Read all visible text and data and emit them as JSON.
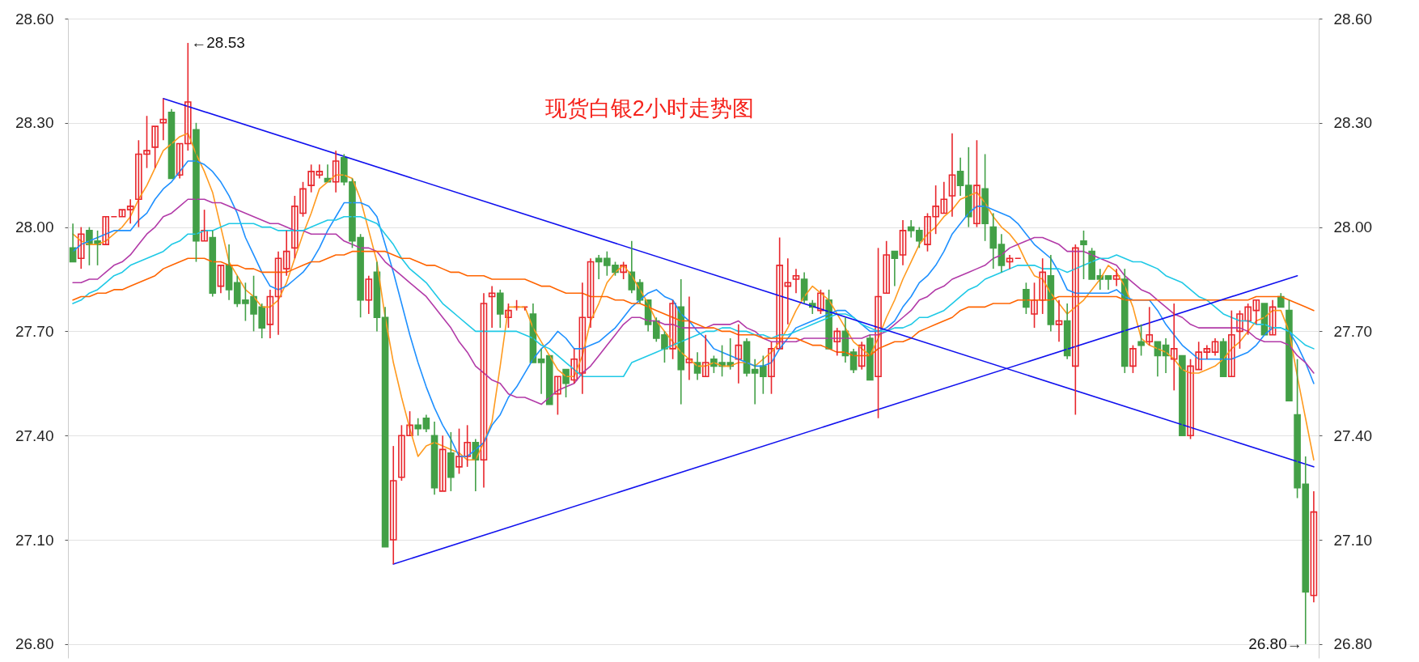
{
  "chart_data": {
    "type": "candlestick",
    "title": "现货白银2小时走势图",
    "categories": [
      null,
      null,
      null,
      null,
      null,
      null,
      null,
      null,
      null,
      null,
      null,
      null,
      null,
      null,
      null,
      null,
      null,
      null,
      null,
      null,
      null,
      null,
      null,
      null,
      null,
      null,
      null,
      null,
      null,
      null,
      null,
      null,
      null,
      null,
      null,
      null,
      null,
      null,
      null,
      null,
      null,
      null,
      null,
      null,
      null,
      null,
      null,
      null,
      null,
      null,
      null,
      null,
      null,
      null,
      null,
      null,
      null,
      null,
      null,
      null,
      null,
      null,
      null,
      null,
      null,
      null,
      null,
      null,
      null,
      null,
      null,
      null,
      null,
      null,
      null,
      null,
      null,
      null,
      null,
      null,
      null,
      null,
      null,
      null,
      null,
      null,
      null,
      null,
      null,
      null,
      null,
      null,
      null,
      null,
      null,
      null,
      null,
      null,
      null,
      null,
      null,
      null,
      null,
      null,
      null,
      null,
      null,
      null,
      null,
      null,
      null,
      null,
      null,
      null,
      null,
      null,
      null,
      null,
      null,
      null,
      null,
      null,
      null,
      null,
      null,
      null,
      null,
      null,
      null,
      null,
      null,
      null,
      null,
      null,
      null,
      null,
      null,
      null,
      null,
      null,
      null,
      null,
      null,
      null,
      null,
      null,
      null,
      null,
      null,
      null,
      null,
      null
    ],
    "ohlc": [
      [
        27.94,
        28.01,
        27.9,
        27.9
      ],
      [
        27.91,
        28.0,
        27.88,
        27.98
      ],
      [
        27.99,
        28.0,
        27.89,
        27.95
      ],
      [
        27.96,
        27.99,
        27.89,
        27.95
      ],
      [
        27.95,
        28.03,
        27.95,
        28.03
      ],
      [
        28.03,
        28.03,
        28.03,
        28.03
      ],
      [
        28.03,
        28.05,
        28.03,
        28.05
      ],
      [
        28.05,
        28.08,
        28.01,
        28.06
      ],
      [
        28.08,
        28.25,
        28.0,
        28.21
      ],
      [
        28.21,
        28.32,
        28.17,
        28.22
      ],
      [
        28.23,
        28.29,
        28.17,
        28.29
      ],
      [
        28.3,
        28.37,
        28.25,
        28.31
      ],
      [
        28.33,
        28.34,
        28.14,
        28.14
      ],
      [
        28.15,
        28.24,
        28.14,
        28.24
      ],
      [
        28.24,
        28.53,
        28.22,
        28.36
      ],
      [
        28.28,
        28.3,
        27.9,
        27.96
      ],
      [
        27.96,
        28.05,
        27.96,
        27.99
      ],
      [
        27.97,
        27.99,
        27.8,
        27.81
      ],
      [
        27.83,
        27.89,
        27.81,
        27.89
      ],
      [
        27.89,
        27.95,
        27.79,
        27.82
      ],
      [
        27.84,
        27.86,
        27.77,
        27.78
      ],
      [
        27.79,
        27.84,
        27.73,
        27.78
      ],
      [
        27.8,
        27.86,
        27.7,
        27.75
      ],
      [
        27.77,
        27.78,
        27.68,
        27.71
      ],
      [
        27.72,
        27.82,
        27.68,
        27.8
      ],
      [
        27.8,
        27.93,
        27.69,
        27.91
      ],
      [
        27.88,
        27.99,
        27.86,
        27.93
      ],
      [
        27.94,
        28.09,
        27.91,
        28.06
      ],
      [
        28.04,
        28.13,
        28.03,
        28.11
      ],
      [
        28.12,
        28.18,
        28.1,
        28.16
      ],
      [
        28.15,
        28.18,
        28.14,
        28.16
      ],
      [
        28.14,
        28.18,
        28.13,
        28.13
      ],
      [
        28.13,
        28.22,
        28.1,
        28.19
      ],
      [
        28.2,
        28.21,
        28.12,
        28.13
      ],
      [
        28.13,
        28.14,
        27.94,
        27.96
      ],
      [
        27.97,
        27.98,
        27.74,
        27.79
      ],
      [
        27.79,
        27.86,
        27.75,
        27.85
      ],
      [
        27.87,
        27.9,
        27.7,
        27.74
      ],
      [
        27.74,
        27.77,
        27.08,
        27.08
      ],
      [
        27.1,
        27.37,
        27.03,
        27.27
      ],
      [
        27.28,
        27.43,
        27.27,
        27.4
      ],
      [
        27.4,
        27.47,
        27.4,
        27.43
      ],
      [
        27.43,
        27.45,
        27.4,
        27.42
      ],
      [
        27.45,
        27.46,
        27.41,
        27.42
      ],
      [
        27.4,
        27.44,
        27.23,
        27.25
      ],
      [
        27.24,
        27.4,
        27.24,
        27.36
      ],
      [
        27.35,
        27.41,
        27.24,
        27.28
      ],
      [
        27.31,
        27.42,
        27.29,
        27.34
      ],
      [
        27.34,
        27.43,
        27.31,
        27.38
      ],
      [
        27.38,
        27.39,
        27.24,
        27.33
      ],
      [
        27.33,
        27.81,
        27.25,
        27.78
      ],
      [
        27.8,
        27.83,
        27.71,
        27.81
      ],
      [
        27.81,
        27.82,
        27.71,
        27.75
      ],
      [
        27.74,
        27.78,
        27.71,
        27.76
      ],
      [
        27.77,
        27.79,
        27.76,
        27.77
      ],
      [
        27.77,
        27.77,
        27.76,
        27.77
      ],
      [
        27.75,
        27.78,
        27.61,
        27.61
      ],
      [
        27.62,
        27.65,
        27.52,
        27.61
      ],
      [
        27.63,
        27.63,
        27.49,
        27.49
      ],
      [
        27.52,
        27.57,
        27.46,
        27.57
      ],
      [
        27.59,
        27.59,
        27.51,
        27.55
      ],
      [
        27.56,
        27.65,
        27.55,
        27.62
      ],
      [
        27.58,
        27.84,
        27.52,
        27.74
      ],
      [
        27.74,
        27.91,
        27.71,
        27.9
      ],
      [
        27.91,
        27.92,
        27.85,
        27.9
      ],
      [
        27.91,
        27.93,
        27.86,
        27.89
      ],
      [
        27.89,
        27.9,
        27.86,
        27.87
      ],
      [
        27.87,
        27.9,
        27.85,
        27.89
      ],
      [
        27.87,
        27.96,
        27.81,
        27.82
      ],
      [
        27.84,
        27.85,
        27.78,
        27.79
      ],
      [
        27.79,
        27.79,
        27.7,
        27.72
      ],
      [
        27.73,
        27.74,
        27.67,
        27.68
      ],
      [
        27.69,
        27.7,
        27.61,
        27.65
      ],
      [
        27.65,
        27.79,
        27.62,
        27.78
      ],
      [
        27.77,
        27.85,
        27.49,
        27.59
      ],
      [
        27.61,
        27.8,
        27.56,
        27.62
      ],
      [
        27.61,
        27.64,
        27.56,
        27.58
      ],
      [
        27.57,
        27.69,
        27.57,
        27.61
      ],
      [
        27.62,
        27.63,
        27.58,
        27.6
      ],
      [
        27.61,
        27.66,
        27.57,
        27.6
      ],
      [
        27.61,
        27.68,
        27.59,
        27.6
      ],
      [
        27.62,
        27.72,
        27.55,
        27.66
      ],
      [
        27.67,
        27.68,
        27.57,
        27.58
      ],
      [
        27.59,
        27.62,
        27.49,
        27.58
      ],
      [
        27.6,
        27.63,
        27.52,
        27.57
      ],
      [
        27.57,
        27.67,
        27.52,
        27.65
      ],
      [
        27.65,
        27.97,
        27.65,
        27.89
      ],
      [
        27.83,
        27.91,
        27.72,
        27.84
      ],
      [
        27.85,
        27.88,
        27.81,
        27.86
      ],
      [
        27.85,
        27.87,
        27.78,
        27.79
      ],
      [
        27.78,
        27.79,
        27.75,
        27.77
      ],
      [
        27.76,
        27.82,
        27.75,
        27.81
      ],
      [
        27.79,
        27.82,
        27.65,
        27.65
      ],
      [
        27.67,
        27.71,
        27.63,
        27.7
      ],
      [
        27.7,
        27.74,
        27.61,
        27.63
      ],
      [
        27.64,
        27.65,
        27.58,
        27.59
      ],
      [
        27.6,
        27.67,
        27.59,
        27.66
      ],
      [
        27.68,
        27.69,
        27.56,
        27.56
      ],
      [
        27.57,
        27.94,
        27.45,
        27.8
      ],
      [
        27.81,
        27.96,
        27.81,
        27.92
      ],
      [
        27.93,
        27.93,
        27.83,
        27.91
      ],
      [
        27.92,
        28.02,
        27.89,
        27.99
      ],
      [
        28.0,
        28.02,
        27.97,
        27.99
      ],
      [
        27.99,
        28.0,
        27.94,
        27.96
      ],
      [
        27.95,
        28.04,
        27.93,
        28.03
      ],
      [
        28.03,
        28.12,
        27.98,
        28.06
      ],
      [
        28.04,
        28.13,
        28.04,
        28.08
      ],
      [
        28.09,
        28.27,
        28.03,
        28.15
      ],
      [
        28.16,
        28.2,
        28.09,
        28.12
      ],
      [
        28.12,
        28.23,
        28.0,
        28.03
      ],
      [
        28.01,
        28.25,
        28.0,
        28.12
      ],
      [
        28.11,
        28.21,
        27.96,
        28.01
      ],
      [
        28.0,
        28.04,
        27.88,
        27.94
      ],
      [
        27.95,
        27.98,
        27.87,
        27.89
      ],
      [
        27.9,
        27.92,
        27.88,
        27.91
      ],
      [
        27.91,
        27.91,
        27.91,
        27.91
      ],
      [
        27.82,
        27.84,
        27.75,
        27.77
      ],
      [
        27.75,
        27.84,
        27.71,
        27.79
      ],
      [
        27.79,
        27.91,
        27.75,
        27.87
      ],
      [
        27.86,
        27.92,
        27.7,
        27.72
      ],
      [
        27.72,
        27.79,
        27.67,
        27.73
      ],
      [
        27.73,
        27.78,
        27.62,
        27.63
      ],
      [
        27.6,
        27.95,
        27.46,
        27.94
      ],
      [
        27.96,
        27.99,
        27.85,
        27.95
      ],
      [
        27.93,
        27.94,
        27.85,
        27.85
      ],
      [
        27.86,
        27.88,
        27.82,
        27.85
      ],
      [
        27.86,
        27.86,
        27.82,
        27.85
      ],
      [
        27.85,
        27.88,
        27.83,
        27.86
      ],
      [
        27.85,
        27.88,
        27.58,
        27.6
      ],
      [
        27.6,
        27.66,
        27.58,
        27.65
      ],
      [
        27.67,
        27.72,
        27.63,
        27.66
      ],
      [
        27.67,
        27.77,
        27.66,
        27.69
      ],
      [
        27.67,
        27.67,
        27.57,
        27.63
      ],
      [
        27.66,
        27.68,
        27.58,
        27.63
      ],
      [
        27.62,
        27.78,
        27.53,
        27.65
      ],
      [
        27.63,
        27.63,
        27.4,
        27.4
      ],
      [
        27.4,
        27.62,
        27.39,
        27.6
      ],
      [
        27.59,
        27.67,
        27.59,
        27.64
      ],
      [
        27.64,
        27.66,
        27.62,
        27.65
      ],
      [
        27.64,
        27.68,
        27.63,
        27.67
      ],
      [
        27.67,
        27.68,
        27.57,
        27.57
      ],
      [
        27.57,
        27.76,
        27.57,
        27.69
      ],
      [
        27.7,
        27.76,
        27.65,
        27.75
      ],
      [
        27.73,
        27.78,
        27.69,
        27.77
      ],
      [
        27.76,
        27.79,
        27.72,
        27.79
      ],
      [
        27.78,
        27.78,
        27.69,
        27.69
      ],
      [
        27.69,
        27.79,
        27.69,
        27.77
      ],
      [
        27.8,
        27.81,
        27.77,
        27.77
      ],
      [
        27.76,
        27.79,
        27.5,
        27.5
      ],
      [
        27.46,
        27.62,
        27.22,
        27.25
      ],
      [
        27.26,
        27.34,
        26.8,
        26.95
      ],
      [
        26.94,
        27.24,
        26.92,
        27.18
      ]
    ],
    "colors": [
      "#43a047",
      "#e8262c",
      "#43a047",
      "#43a047",
      "#e8262c",
      "#e8262c",
      "#e8262c",
      "#e8262c",
      "#e8262c",
      "#e8262c",
      "#e8262c",
      "#e8262c",
      "#43a047",
      "#e8262c",
      "#e8262c",
      "#43a047",
      "#e8262c",
      "#43a047",
      "#e8262c",
      "#43a047",
      "#43a047",
      "#43a047",
      "#43a047",
      "#43a047",
      "#e8262c",
      "#e8262c",
      "#e8262c",
      "#e8262c",
      "#e8262c",
      "#e8262c",
      "#e8262c",
      "#43a047",
      "#e8262c",
      "#43a047",
      "#43a047",
      "#43a047",
      "#e8262c",
      "#43a047",
      "#43a047",
      "#e8262c",
      "#e8262c",
      "#e8262c",
      "#43a047",
      "#43a047",
      "#43a047",
      "#e8262c",
      "#43a047",
      "#e8262c",
      "#e8262c",
      "#43a047",
      "#e8262c",
      "#e8262c",
      "#43a047",
      "#e8262c",
      "#e8262c",
      "#e8262c",
      "#43a047",
      "#43a047",
      "#43a047",
      "#e8262c",
      "#43a047",
      "#e8262c",
      "#e8262c",
      "#e8262c",
      "#43a047",
      "#43a047",
      "#43a047",
      "#e8262c",
      "#43a047",
      "#43a047",
      "#43a047",
      "#43a047",
      "#43a047",
      "#e8262c",
      "#43a047",
      "#e8262c",
      "#43a047",
      "#e8262c",
      "#43a047",
      "#43a047",
      "#43a047",
      "#e8262c",
      "#43a047",
      "#43a047",
      "#43a047",
      "#e8262c",
      "#e8262c",
      "#e8262c",
      "#e8262c",
      "#43a047",
      "#43a047",
      "#e8262c",
      "#43a047",
      "#e8262c",
      "#43a047",
      "#43a047",
      "#e8262c",
      "#43a047",
      "#e8262c",
      "#e8262c",
      "#43a047",
      "#e8262c",
      "#43a047",
      "#43a047",
      "#e8262c",
      "#e8262c",
      "#e8262c",
      "#e8262c",
      "#43a047",
      "#43a047",
      "#e8262c",
      "#43a047",
      "#43a047",
      "#43a047",
      "#e8262c",
      "#e8262c",
      "#43a047",
      "#e8262c",
      "#e8262c",
      "#43a047",
      "#e8262c",
      "#43a047",
      "#e8262c",
      "#43a047",
      "#43a047",
      "#43a047",
      "#43a047",
      "#e8262c",
      "#43a047",
      "#e8262c",
      "#43a047",
      "#e8262c",
      "#43a047",
      "#43a047",
      "#e8262c",
      "#43a047",
      "#e8262c",
      "#e8262c",
      "#e8262c",
      "#e8262c",
      "#43a047",
      "#e8262c",
      "#e8262c",
      "#e8262c",
      "#e8262c",
      "#43a047",
      "#e8262c",
      "#43a047",
      "#43a047",
      "#43a047",
      "#43a047",
      "#e8262c"
    ],
    "series": [
      {
        "type": "line",
        "color": "#ff9a1f",
        "values": [
          27.98,
          27.96,
          27.95,
          27.95,
          27.96,
          27.98,
          28.0,
          28.03,
          28.08,
          28.12,
          28.17,
          28.22,
          28.24,
          28.26,
          28.27,
          28.21,
          28.16,
          28.1,
          28.0,
          27.9,
          27.86,
          27.82,
          27.8,
          27.77,
          27.77,
          27.79,
          27.84,
          27.91,
          27.98,
          28.04,
          28.11,
          28.13,
          28.15,
          28.15,
          28.14,
          28.08,
          27.99,
          27.9,
          27.74,
          27.61,
          27.51,
          27.42,
          27.34,
          27.37,
          27.38,
          27.37,
          27.36,
          27.35,
          27.33,
          27.33,
          27.38,
          27.44,
          27.6,
          27.77,
          27.77,
          27.77,
          27.71,
          27.67,
          27.63,
          27.59,
          27.57,
          27.57,
          27.63,
          27.73,
          27.78,
          27.84,
          27.87,
          27.89,
          27.86,
          27.82,
          27.78,
          27.73,
          27.7,
          27.67,
          27.64,
          27.62,
          27.6,
          27.6,
          27.61,
          27.6,
          27.6,
          27.61,
          27.61,
          27.6,
          27.62,
          27.64,
          27.67,
          27.71,
          27.76,
          27.8,
          27.83,
          27.81,
          27.79,
          27.75,
          27.71,
          27.67,
          27.65,
          27.63,
          27.68,
          27.74,
          27.79,
          27.85,
          27.9,
          27.95,
          27.98,
          28.0,
          28.03,
          28.05,
          28.08,
          28.09,
          28.1,
          28.07,
          28.03,
          28.0,
          27.98,
          27.95,
          27.9,
          27.86,
          27.85,
          27.81,
          27.78,
          27.75,
          27.77,
          27.79,
          27.82,
          27.85,
          27.89,
          27.87,
          27.83,
          27.77,
          27.68,
          27.66,
          27.65,
          27.64,
          27.62,
          27.59,
          27.58,
          27.58,
          27.59,
          27.6,
          27.62,
          27.65,
          27.67,
          27.7,
          27.73,
          27.74,
          27.76,
          27.76,
          27.7,
          27.57,
          27.45,
          27.33
        ]
      },
      {
        "type": "line",
        "color": "#1e90ff",
        "values": [
          27.93,
          27.95,
          27.96,
          27.97,
          27.98,
          27.99,
          27.99,
          27.99,
          28.02,
          28.04,
          28.08,
          28.11,
          28.13,
          28.16,
          28.19,
          28.19,
          28.18,
          28.16,
          28.13,
          28.09,
          28.04,
          27.97,
          27.92,
          27.87,
          27.83,
          27.82,
          27.83,
          27.85,
          27.87,
          27.9,
          27.94,
          27.99,
          28.03,
          28.07,
          28.07,
          28.07,
          28.06,
          28.03,
          27.95,
          27.87,
          27.78,
          27.69,
          27.61,
          27.54,
          27.48,
          27.43,
          27.39,
          27.34,
          27.34,
          27.36,
          27.38,
          27.43,
          27.46,
          27.51,
          27.54,
          27.58,
          27.62,
          27.65,
          27.67,
          27.7,
          27.68,
          27.65,
          27.65,
          27.66,
          27.67,
          27.69,
          27.71,
          27.74,
          27.77,
          27.79,
          27.81,
          27.82,
          27.8,
          27.79,
          27.75,
          27.73,
          27.7,
          27.68,
          27.65,
          27.64,
          27.63,
          27.62,
          27.61,
          27.6,
          27.6,
          27.61,
          27.65,
          27.68,
          27.71,
          27.72,
          27.73,
          27.74,
          27.75,
          27.76,
          27.76,
          27.74,
          27.72,
          27.7,
          27.7,
          27.71,
          27.73,
          27.77,
          27.8,
          27.84,
          27.86,
          27.89,
          27.93,
          27.98,
          28.01,
          28.04,
          28.06,
          28.06,
          28.05,
          28.04,
          28.03,
          28.01,
          27.98,
          27.95,
          27.93,
          27.91,
          27.87,
          27.82,
          27.81,
          27.81,
          27.81,
          27.81,
          27.81,
          27.82,
          27.8,
          27.79,
          27.79,
          27.79,
          27.76,
          27.72,
          27.69,
          27.66,
          27.64,
          27.62,
          27.62,
          27.62,
          27.62,
          27.62,
          27.63,
          27.64,
          27.66,
          27.69,
          27.71,
          27.71,
          27.7,
          27.66,
          27.61,
          27.55
        ]
      },
      {
        "type": "line",
        "color": "#b23aa8",
        "values": [
          27.84,
          27.84,
          27.85,
          27.85,
          27.87,
          27.89,
          27.9,
          27.92,
          27.95,
          27.98,
          28.0,
          28.03,
          28.04,
          28.06,
          28.08,
          28.08,
          28.08,
          28.07,
          28.07,
          28.06,
          28.05,
          28.04,
          28.03,
          28.02,
          28.01,
          28.01,
          28.0,
          27.99,
          27.99,
          27.98,
          27.98,
          27.98,
          27.98,
          27.96,
          27.95,
          27.94,
          27.94,
          27.93,
          27.9,
          27.88,
          27.86,
          27.84,
          27.82,
          27.8,
          27.77,
          27.74,
          27.71,
          27.67,
          27.64,
          27.6,
          27.58,
          27.56,
          27.55,
          27.52,
          27.51,
          27.51,
          27.5,
          27.49,
          27.51,
          27.53,
          27.54,
          27.55,
          27.58,
          27.6,
          27.63,
          27.66,
          27.69,
          27.72,
          27.74,
          27.74,
          27.73,
          27.73,
          27.72,
          27.72,
          27.71,
          27.71,
          27.71,
          27.71,
          27.72,
          27.72,
          27.72,
          27.73,
          27.71,
          27.7,
          27.68,
          27.67,
          27.67,
          27.67,
          27.67,
          27.68,
          27.68,
          27.68,
          27.68,
          27.68,
          27.68,
          27.68,
          27.68,
          27.69,
          27.69,
          27.7,
          27.72,
          27.74,
          27.76,
          27.79,
          27.8,
          27.82,
          27.83,
          27.85,
          27.86,
          27.87,
          27.88,
          27.89,
          27.91,
          27.92,
          27.94,
          27.95,
          27.96,
          27.97,
          27.97,
          27.96,
          27.95,
          27.93,
          27.93,
          27.93,
          27.92,
          27.91,
          27.9,
          27.89,
          27.86,
          27.84,
          27.82,
          27.81,
          27.79,
          27.77,
          27.75,
          27.74,
          27.72,
          27.71,
          27.71,
          27.71,
          27.71,
          27.71,
          27.71,
          27.7,
          27.68,
          27.67,
          27.67,
          27.67,
          27.66,
          27.63,
          27.61,
          27.58
        ]
      },
      {
        "type": "line",
        "color": "#1fc9e6",
        "values": [
          27.78,
          27.79,
          27.81,
          27.82,
          27.84,
          27.86,
          27.87,
          27.89,
          27.9,
          27.91,
          27.92,
          27.93,
          27.95,
          27.96,
          27.98,
          27.98,
          27.99,
          27.99,
          28.0,
          28.01,
          28.01,
          28.01,
          28.01,
          28.0,
          28.0,
          27.99,
          27.99,
          27.99,
          27.99,
          28.0,
          28.01,
          28.02,
          28.02,
          28.03,
          28.03,
          28.03,
          28.02,
          28.01,
          27.98,
          27.95,
          27.91,
          27.88,
          27.86,
          27.84,
          27.81,
          27.78,
          27.76,
          27.74,
          27.72,
          27.7,
          27.7,
          27.7,
          27.7,
          27.7,
          27.7,
          27.69,
          27.68,
          27.66,
          27.65,
          27.63,
          27.61,
          27.59,
          27.57,
          27.57,
          27.57,
          27.57,
          27.57,
          27.57,
          27.61,
          27.62,
          27.63,
          27.64,
          27.65,
          27.66,
          27.67,
          27.68,
          27.69,
          27.7,
          27.7,
          27.71,
          27.71,
          27.7,
          27.7,
          27.69,
          27.69,
          27.68,
          27.69,
          27.69,
          27.7,
          27.71,
          27.72,
          27.73,
          27.74,
          27.75,
          27.75,
          27.74,
          27.72,
          27.71,
          27.7,
          27.7,
          27.71,
          27.71,
          27.72,
          27.74,
          27.74,
          27.75,
          27.76,
          27.78,
          27.8,
          27.82,
          27.83,
          27.85,
          27.86,
          27.87,
          27.88,
          27.89,
          27.89,
          27.89,
          27.88,
          27.88,
          27.88,
          27.87,
          27.88,
          27.89,
          27.9,
          27.91,
          27.91,
          27.92,
          27.91,
          27.9,
          27.9,
          27.89,
          27.88,
          27.86,
          27.85,
          27.84,
          27.82,
          27.8,
          27.79,
          27.77,
          27.75,
          27.74,
          27.73,
          27.73,
          27.72,
          27.72,
          27.71,
          27.71,
          27.7,
          27.68,
          27.66,
          27.65
        ]
      },
      {
        "type": "line",
        "color": "#ff6400",
        "values": [
          27.79,
          27.8,
          27.8,
          27.81,
          27.81,
          27.82,
          27.82,
          27.83,
          27.84,
          27.85,
          27.86,
          27.88,
          27.89,
          27.9,
          27.91,
          27.91,
          27.91,
          27.9,
          27.9,
          27.89,
          27.89,
          27.88,
          27.88,
          27.87,
          27.87,
          27.87,
          27.87,
          27.88,
          27.89,
          27.9,
          27.9,
          27.91,
          27.92,
          27.92,
          27.93,
          27.93,
          27.93,
          27.93,
          27.93,
          27.92,
          27.91,
          27.91,
          27.9,
          27.89,
          27.89,
          27.88,
          27.87,
          27.87,
          27.86,
          27.86,
          27.86,
          27.85,
          27.85,
          27.85,
          27.85,
          27.85,
          27.84,
          27.83,
          27.83,
          27.82,
          27.81,
          27.81,
          27.81,
          27.8,
          27.8,
          27.8,
          27.79,
          27.79,
          27.78,
          27.78,
          27.77,
          27.76,
          27.75,
          27.74,
          27.73,
          27.73,
          27.72,
          27.71,
          27.71,
          27.7,
          27.7,
          27.69,
          27.69,
          27.69,
          27.68,
          27.68,
          27.68,
          27.68,
          27.68,
          27.67,
          27.66,
          27.66,
          27.65,
          27.64,
          27.64,
          27.63,
          27.63,
          27.63,
          27.65,
          27.66,
          27.67,
          27.67,
          27.68,
          27.7,
          27.71,
          27.72,
          27.73,
          27.74,
          27.76,
          27.77,
          27.77,
          27.77,
          27.78,
          27.78,
          27.78,
          27.79,
          27.79,
          27.79,
          27.79,
          27.79,
          27.8,
          27.8,
          27.8,
          27.8,
          27.8,
          27.8,
          27.8,
          27.8,
          27.79,
          27.79,
          27.79,
          27.79,
          27.79,
          27.79,
          27.79,
          27.79,
          27.79,
          27.79,
          27.79,
          27.79,
          27.79,
          27.79,
          27.79,
          27.79,
          27.8,
          27.8,
          27.8,
          27.8,
          27.79,
          27.78,
          27.77,
          27.76
        ]
      },
      {
        "type": "line",
        "color": "#1010ee",
        "values": [
          null,
          null,
          null,
          null,
          null,
          null,
          null,
          null,
          null,
          null,
          null,
          28.37,
          null,
          null,
          null,
          null,
          null,
          null,
          null,
          null,
          null,
          null,
          null,
          null,
          null,
          null,
          null,
          null,
          null,
          null,
          null,
          null,
          null,
          null,
          null,
          null,
          null,
          null,
          null,
          null,
          null,
          null,
          null,
          null,
          null,
          null,
          null,
          null,
          null,
          null,
          null,
          null,
          null,
          null,
          null,
          null,
          null,
          null,
          null,
          null,
          null,
          null,
          null,
          null,
          null,
          null,
          null,
          null,
          null,
          null,
          null,
          null,
          null,
          null,
          null,
          null,
          null,
          null,
          null,
          null,
          null,
          null,
          null,
          null,
          null,
          null,
          null,
          null,
          null,
          null,
          null,
          null,
          null,
          null,
          null,
          null,
          null,
          null,
          null,
          null,
          null,
          null,
          null,
          null,
          null,
          null,
          null,
          null,
          null,
          null,
          null,
          null,
          null,
          null,
          null,
          null,
          null,
          null,
          null,
          null,
          null,
          null,
          null,
          null,
          null,
          null,
          null,
          null,
          null,
          null,
          null,
          null,
          null,
          null,
          null,
          null,
          null,
          null,
          null,
          null,
          null,
          null,
          null,
          null,
          null,
          null,
          null,
          null,
          null,
          null,
          null,
          27.31
        ]
      },
      {
        "type": "line",
        "color": "#1010ee",
        "values": [
          null,
          null,
          null,
          null,
          null,
          null,
          null,
          null,
          null,
          null,
          null,
          null,
          null,
          null,
          null,
          null,
          null,
          null,
          null,
          null,
          null,
          null,
          null,
          null,
          null,
          null,
          null,
          null,
          null,
          null,
          null,
          null,
          null,
          null,
          null,
          null,
          null,
          null,
          null,
          27.03,
          null,
          null,
          null,
          null,
          null,
          null,
          null,
          null,
          null,
          null,
          null,
          null,
          null,
          null,
          null,
          null,
          null,
          null,
          null,
          null,
          null,
          null,
          null,
          null,
          null,
          null,
          null,
          null,
          null,
          null,
          null,
          null,
          null,
          null,
          null,
          null,
          null,
          null,
          null,
          null,
          null,
          null,
          null,
          null,
          null,
          null,
          null,
          null,
          null,
          null,
          null,
          null,
          null,
          null,
          null,
          null,
          null,
          null,
          null,
          null,
          null,
          null,
          null,
          null,
          null,
          null,
          null,
          null,
          null,
          null,
          null,
          null,
          null,
          null,
          null,
          null,
          null,
          null,
          null,
          null,
          null,
          null,
          null,
          null,
          null,
          null,
          null,
          null,
          null,
          null,
          null,
          null,
          null,
          null,
          null,
          null,
          null,
          null,
          null,
          null,
          null,
          null,
          null,
          null,
          null,
          null,
          null,
          null,
          null,
          27.86,
          null,
          null
        ]
      }
    ],
    "ylim": [
      26.76,
      28.6
    ],
    "yticks": [
      {
        "value": 26.8,
        "label": "26.80"
      },
      {
        "value": 27.1,
        "label": "27.10"
      },
      {
        "value": 27.4,
        "label": "27.40"
      },
      {
        "value": 27.7,
        "label": "27.70"
      },
      {
        "value": 28.0,
        "label": "28.00"
      },
      {
        "value": 28.3,
        "label": "28.30"
      },
      {
        "value": 28.6,
        "label": "28.60"
      }
    ],
    "y2lim": [
      26.76,
      28.6
    ],
    "y2ticks": [
      {
        "value": 26.8,
        "label": "26.80"
      },
      {
        "value": 27.1,
        "label": "27.10"
      },
      {
        "value": 27.4,
        "label": "27.40"
      },
      {
        "value": 27.7,
        "label": "27.70"
      },
      {
        "value": 28.0,
        "label": "28.00"
      },
      {
        "value": 28.3,
        "label": "28.30"
      },
      {
        "value": 28.6,
        "label": "28.60"
      }
    ],
    "grid": "y",
    "annotations": [
      "←28.53",
      "26.80→"
    ]
  }
}
